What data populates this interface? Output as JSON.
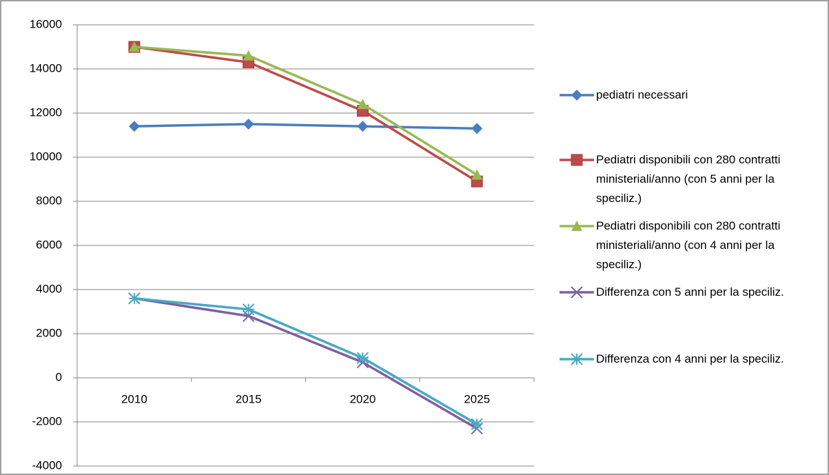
{
  "chart_data": {
    "type": "line",
    "categories": [
      "2010",
      "2015",
      "2020",
      "2025"
    ],
    "series": [
      {
        "name": "pediatri necessari",
        "color": "#4a7ebb",
        "marker": "diamond",
        "values": [
          11400,
          11500,
          11400,
          11300
        ]
      },
      {
        "name": "Pediatri disponibili con 280 contratti ministeriali/anno (con 5 anni per la speciliz.)",
        "color": "#be4b48",
        "marker": "square",
        "values": [
          15000,
          14300,
          12100,
          8900
        ]
      },
      {
        "name": "Pediatri disponibili con 280 contratti ministeriali/anno (con 4 anni per la speciliz.)",
        "color": "#98b954",
        "marker": "triangle",
        "values": [
          15000,
          14600,
          12400,
          9200
        ]
      },
      {
        "name": "Differenza con 5 anni per la speciliz.",
        "color": "#7d60a0",
        "marker": "x",
        "values": [
          3600,
          2800,
          700,
          -2300
        ]
      },
      {
        "name": "Differenza con 4 anni per la speciliz.",
        "color": "#46aac5",
        "marker": "star",
        "values": [
          3600,
          3100,
          900,
          -2100
        ]
      }
    ],
    "ylim": [
      -4000,
      16000
    ],
    "yticks": [
      -4000,
      -2000,
      0,
      2000,
      4000,
      6000,
      8000,
      10000,
      12000,
      14000,
      16000
    ],
    "grid": true,
    "legend": "right"
  }
}
